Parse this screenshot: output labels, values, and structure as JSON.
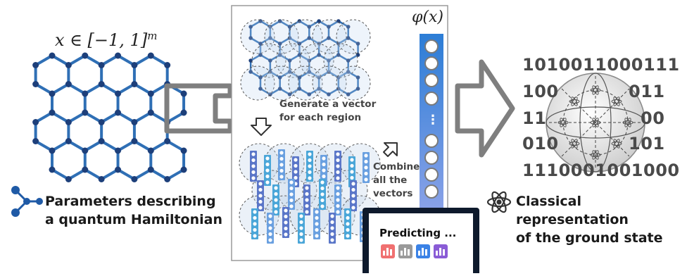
{
  "input": {
    "math_label": "x ∈ [−1, 1]^m",
    "caption_line1": "Parameters describing",
    "caption_line2": "a quantum Hamiltonian"
  },
  "middle": {
    "phi_label": "φ(x)",
    "step1_line1": "Generate a vector",
    "step1_line2": "for each region",
    "step2_line1": "Combine",
    "step2_line2": "all the",
    "step2_line3": "vectors",
    "ellipsis": "⋮"
  },
  "laptop": {
    "text": "Predicting ...",
    "icon_colors": [
      "#f07070",
      "#9a9a9a",
      "#3b82e6",
      "#8a5cd6"
    ]
  },
  "output": {
    "bits_row1": "1010011000111",
    "bits_row2_left": "100",
    "bits_row2_right": "011",
    "bits_row3_left": "11",
    "bits_row3_right": "00",
    "bits_row4_left": "010",
    "bits_row4_right": "101",
    "bits_row5": "1110001001000",
    "caption_line1": "Classical representation",
    "caption_line2": "of the ground state"
  },
  "colors": {
    "lattice_edge": "#2f6fb5",
    "lattice_node": "#1d3f7a",
    "arrow_gray": "#7f7f7f",
    "panel_border": "#9a9a9a",
    "column_blue": "#4a8fd8",
    "icon_blue": "#1f5aa6"
  }
}
